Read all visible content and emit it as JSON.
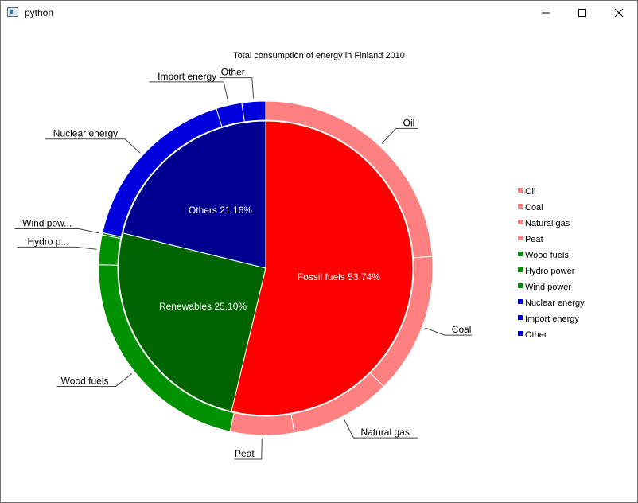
{
  "window": {
    "title": "python"
  },
  "chart_data": {
    "type": "pie",
    "title": "Total consumption of energy in Finland 2010",
    "inner": [
      {
        "name": "Fossil fuels",
        "label": "Fossil fuels 53.74%",
        "value": 53.74,
        "color": "#ff0000",
        "ring_color": "#ff8080"
      },
      {
        "name": "Renewables",
        "label": "Renewables 25.10%",
        "value": 25.1,
        "color": "#006400",
        "ring_color": "#009100"
      },
      {
        "name": "Others",
        "label": "Others 21.16%",
        "value": 21.16,
        "color": "#000090",
        "ring_color": "#0000dc"
      }
    ],
    "outer": [
      {
        "label": "Oil",
        "short": "Oil",
        "value": 24.0,
        "group": 0
      },
      {
        "label": "Coal",
        "short": "Coal",
        "value": 13.7,
        "group": 0
      },
      {
        "label": "Natural gas",
        "short": "Natural gas",
        "value": 9.8,
        "group": 0
      },
      {
        "label": "Peat",
        "short": "Peat",
        "value": 6.2,
        "group": 0
      },
      {
        "label": "Wood fuels",
        "short": "Wood fuels",
        "value": 22.0,
        "group": 1
      },
      {
        "label": "Hydro power",
        "short": "Hydro p...",
        "value": 2.9,
        "group": 1
      },
      {
        "label": "Wind power",
        "short": "Wind pow...",
        "value": 0.2,
        "group": 1
      },
      {
        "label": "Nuclear energy",
        "short": "Nuclear energy",
        "value": 16.9,
        "group": 2
      },
      {
        "label": "Import energy",
        "short": "Import energy",
        "value": 2.5,
        "group": 2
      },
      {
        "label": "Other",
        "short": "Other",
        "value": 2.3,
        "group": 2
      }
    ],
    "legend_position": "right"
  }
}
